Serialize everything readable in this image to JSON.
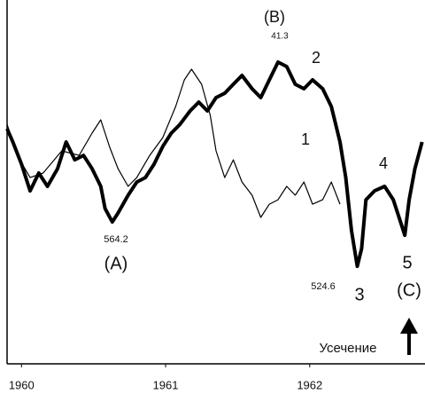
{
  "chart_data": {
    "type": "line",
    "xlim": [
      1959.9,
      1962.8
    ],
    "xticks": [
      1960,
      1961,
      1962
    ],
    "ylim": [
      420,
      802
    ],
    "series": [
      {
        "color": "#000000",
        "x": [
          1959.9,
          1959.94,
          1960.0,
          1960.06,
          1960.12,
          1960.18,
          1960.25,
          1960.31,
          1960.37,
          1960.43,
          1960.49,
          1960.55,
          1960.58,
          1960.63,
          1960.67,
          1960.74,
          1960.8,
          1960.86,
          1960.92,
          1960.98,
          1961.04,
          1961.1,
          1961.17,
          1961.23,
          1961.29,
          1961.35,
          1961.41,
          1961.47,
          1961.53,
          1961.6,
          1961.66,
          1961.72,
          1961.78,
          1961.84,
          1961.9,
          1961.96,
          1962.02,
          1962.09,
          1962.15,
          1962.21,
          1962.25,
          1962.29,
          1962.33,
          1962.36,
          1962.39,
          1962.45,
          1962.52,
          1962.58,
          1962.62,
          1962.66,
          1962.69,
          1962.73,
          1962.78
        ],
        "values": [
          666.9,
          652.9,
          629.6,
          601.6,
          620.3,
          606.3,
          624.9,
          652.9,
          634.2,
          638.9,
          624.9,
          606.3,
          583.0,
          569.0,
          578.3,
          597.0,
          610.9,
          615.6,
          629.6,
          648.2,
          662.2,
          671.5,
          685.5,
          694.8,
          685.5,
          699.5,
          704.1,
          713.5,
          722.8,
          708.8,
          699.5,
          718.1,
          736.8,
          732.1,
          713.5,
          708.8,
          718.1,
          708.8,
          690.2,
          652.9,
          615.6,
          559.7,
          522.4,
          541.0,
          592.3,
          601.6,
          606.3,
          592.3,
          573.7,
          555.0,
          592.3,
          624.9,
          652.9
        ]
      },
      {
        "color": "#000000",
        "x": [
          1959.9,
          1959.97,
          1960.06,
          1960.15,
          1960.28,
          1960.4,
          1960.49,
          1960.55,
          1960.61,
          1960.67,
          1960.74,
          1960.8,
          1960.89,
          1960.98,
          1961.07,
          1961.13,
          1961.18,
          1961.25,
          1961.31,
          1961.35,
          1961.41,
          1961.47,
          1961.53,
          1961.6,
          1961.66,
          1961.72,
          1961.78,
          1961.84,
          1961.9,
          1961.96,
          1962.02,
          1962.09,
          1962.15,
          1962.21
        ],
        "values": [
          671.5,
          638.9,
          615.6,
          620.3,
          643.6,
          638.9,
          662.2,
          676.2,
          648.2,
          624.9,
          606.3,
          615.6,
          638.9,
          657.5,
          690.2,
          718.1,
          729.3,
          713.5,
          680.8,
          643.6,
          615.6,
          634.2,
          610.9,
          597.0,
          573.7,
          587.6,
          592.3,
          606.3,
          597.0,
          610.9,
          587.6,
          592.3,
          610.9,
          587.6
        ]
      }
    ],
    "annotations": [
      "(B)",
      "41.3",
      "2",
      "1",
      "4",
      "564.2",
      "(A)",
      "524.6",
      "3",
      "5",
      "(C)",
      "Усечение"
    ]
  }
}
